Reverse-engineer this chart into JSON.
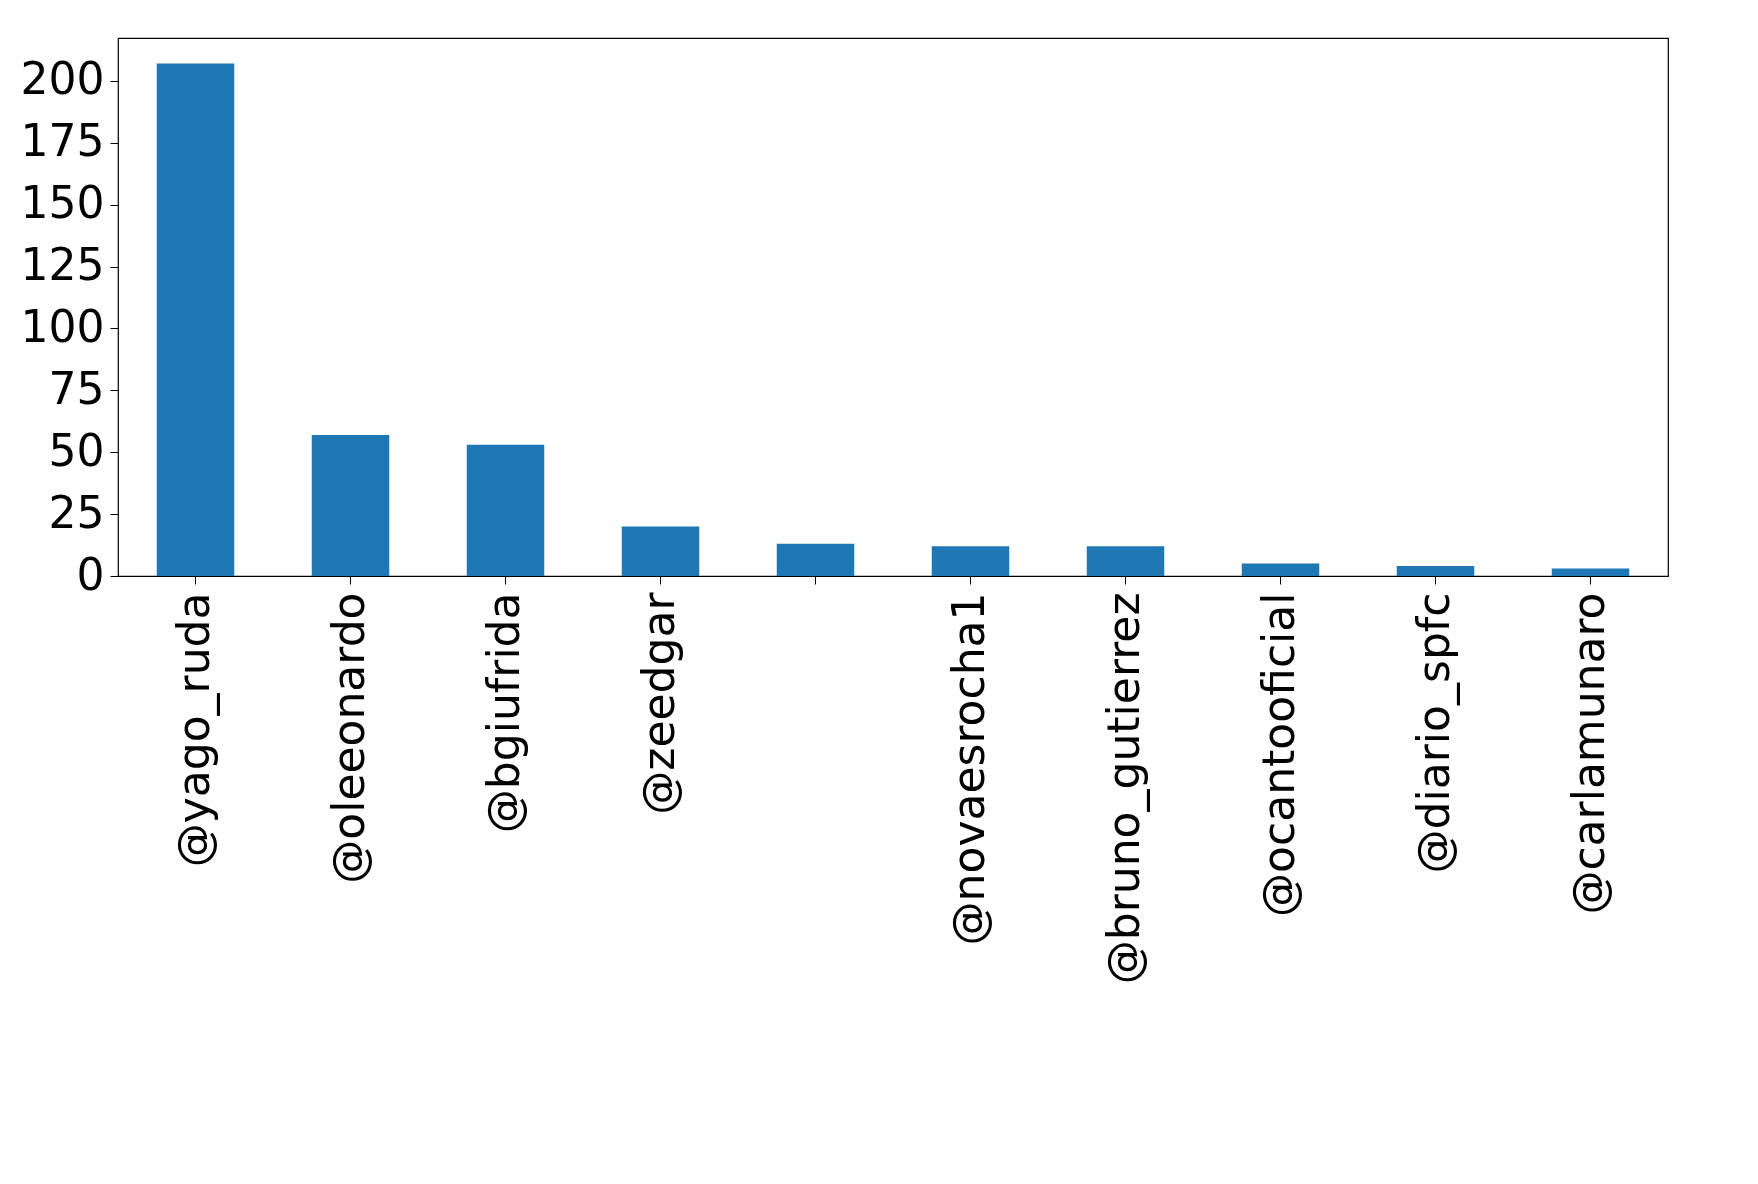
{
  "chart_data": {
    "type": "bar",
    "categories": [
      "@yago_ruda",
      "@oleeonardo",
      "@bgiufrida",
      "@zeedgar",
      null,
      "@novaesrocha1",
      "@bruno_gutierrez",
      "@ocantooficial",
      "@diario_spfc",
      "@carlamunaro"
    ],
    "values": [
      207,
      57,
      53,
      20,
      13,
      12,
      12,
      5,
      4,
      3
    ],
    "color": "#1f77b4",
    "ylim": [
      0,
      217.35
    ],
    "yticks": [
      0,
      25,
      50,
      75,
      100,
      125,
      150,
      175,
      200
    ],
    "grid": false
  }
}
